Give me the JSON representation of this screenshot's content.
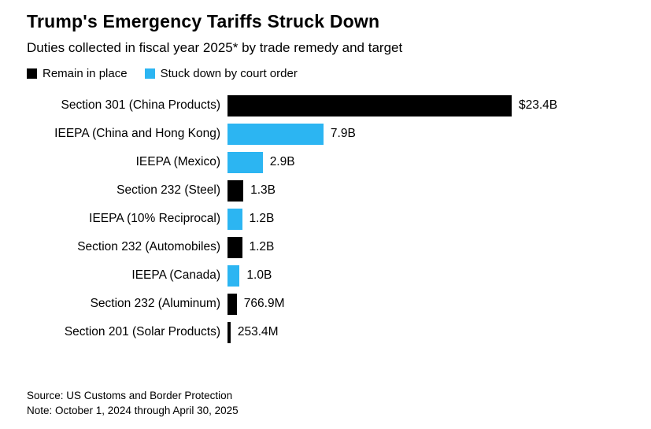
{
  "header": {
    "title": "Trump's Emergency Tariffs Struck Down",
    "subtitle": "Duties collected in fiscal year 2025* by trade remedy and target"
  },
  "chart_data": {
    "type": "bar",
    "orientation": "horizontal",
    "title": "Trump's Emergency Tariffs Struck Down",
    "subtitle": "Duties collected in fiscal year 2025* by trade remedy and target",
    "xlabel": "",
    "ylabel": "",
    "xlim_billions": [
      0,
      23.4
    ],
    "grid": false,
    "legend_position": "top",
    "groups": {
      "remain": {
        "name": "Remain in place",
        "color": "#000000"
      },
      "struck": {
        "name": "Stuck down by court order",
        "color": "#2cb5f2"
      }
    },
    "rows": [
      {
        "category": "Section 301 (China Products)",
        "value_billions": 23.4,
        "value_label": "$23.4B",
        "group": "remain"
      },
      {
        "category": "IEEPA (China and Hong Kong)",
        "value_billions": 7.9,
        "value_label": "7.9B",
        "group": "struck"
      },
      {
        "category": "IEEPA (Mexico)",
        "value_billions": 2.9,
        "value_label": "2.9B",
        "group": "struck"
      },
      {
        "category": "Section 232 (Steel)",
        "value_billions": 1.3,
        "value_label": "1.3B",
        "group": "remain"
      },
      {
        "category": "IEEPA (10% Reciprocal)",
        "value_billions": 1.2,
        "value_label": "1.2B",
        "group": "struck"
      },
      {
        "category": "Section 232 (Automobiles)",
        "value_billions": 1.2,
        "value_label": "1.2B",
        "group": "remain"
      },
      {
        "category": "IEEPA (Canada)",
        "value_billions": 1.0,
        "value_label": "1.0B",
        "group": "struck"
      },
      {
        "category": "Section 232 (Aluminum)",
        "value_billions": 0.7669,
        "value_label": "766.9M",
        "group": "remain"
      },
      {
        "category": "Section 201 (Solar Products)",
        "value_billions": 0.2534,
        "value_label": "253.4M",
        "group": "remain"
      }
    ]
  },
  "footer": {
    "source": "Source: US Customs and Border Protection",
    "note": "Note: October 1, 2024 through April 30, 2025"
  }
}
